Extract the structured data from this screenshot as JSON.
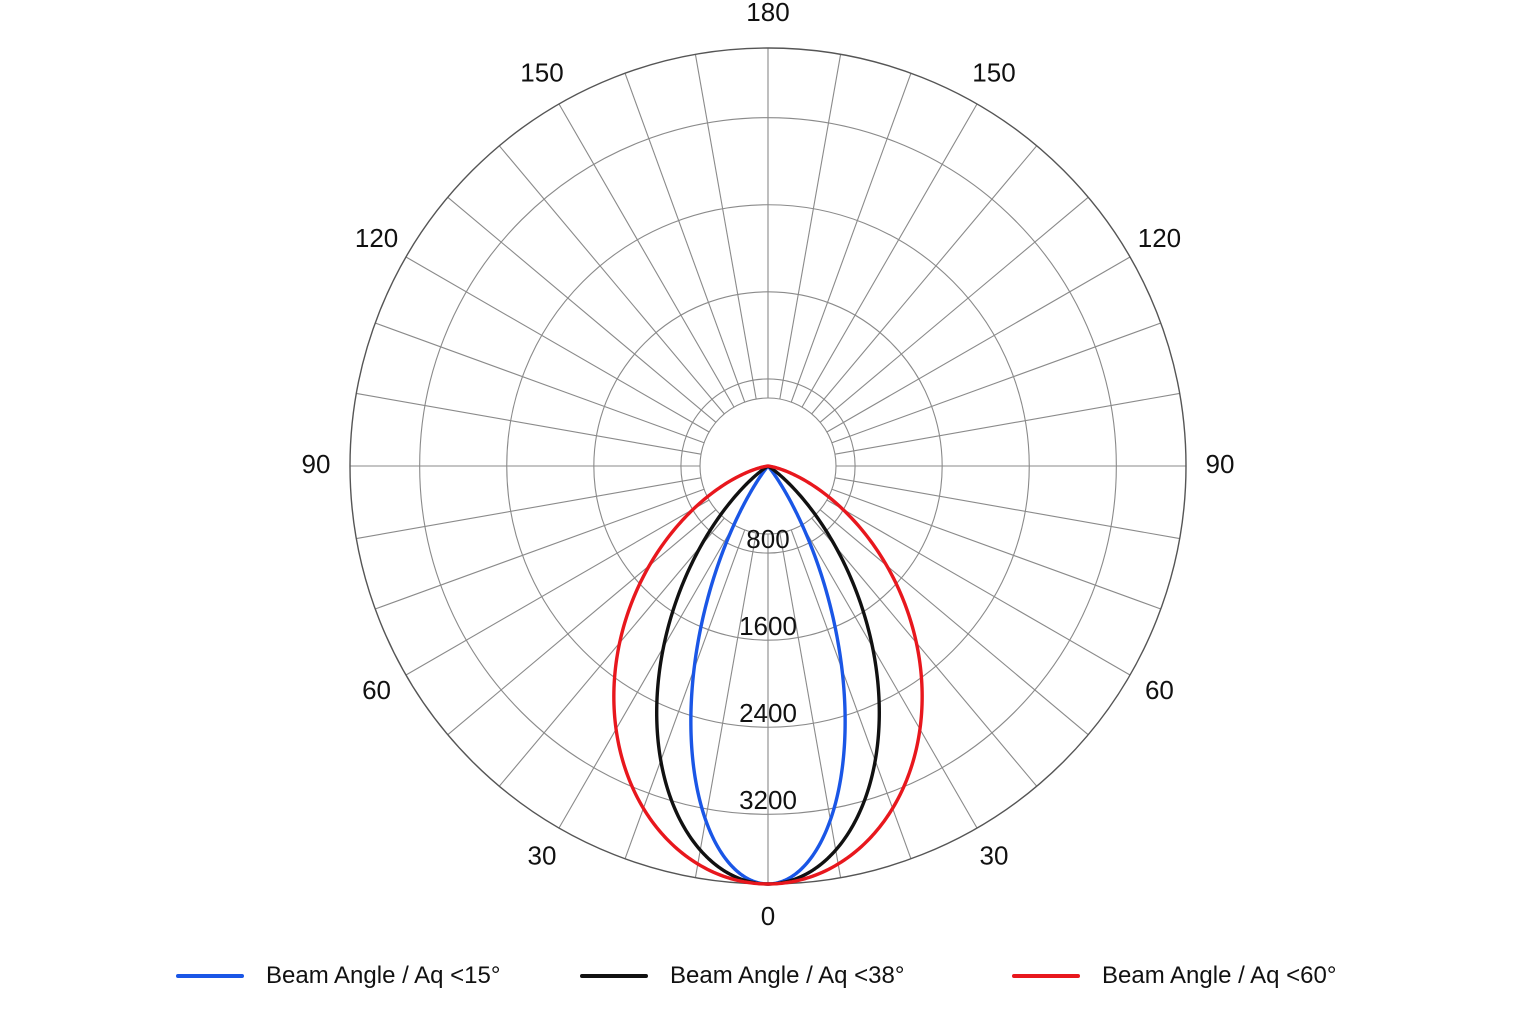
{
  "chart_data": {
    "type": "polar",
    "angle_labels": [
      {
        "angle": 0,
        "text": "0"
      },
      {
        "angle": 30,
        "text": "30"
      },
      {
        "angle": -30,
        "text": "30"
      },
      {
        "angle": 60,
        "text": "60"
      },
      {
        "angle": -60,
        "text": "60"
      },
      {
        "angle": 90,
        "text": "90"
      },
      {
        "angle": -90,
        "text": "90"
      },
      {
        "angle": 120,
        "text": "120"
      },
      {
        "angle": -120,
        "text": "120"
      },
      {
        "angle": 150,
        "text": "150"
      },
      {
        "angle": -150,
        "text": "150"
      },
      {
        "angle": 180,
        "text": "180"
      }
    ],
    "radial_ticks": [
      {
        "value": 800,
        "text": "800"
      },
      {
        "value": 1600,
        "text": "1600"
      },
      {
        "value": 2400,
        "text": "2400"
      },
      {
        "value": 3200,
        "text": "3200"
      }
    ],
    "radial_range": [
      0,
      3840
    ],
    "spoke_step_deg": 10,
    "series": [
      {
        "name": "Beam Angle / Aq <15°",
        "color": "#1a56e6",
        "angle_scale": 2.2
      },
      {
        "name": "Beam Angle / Aq <38°",
        "color": "#111111",
        "angle_scale": 1.5
      },
      {
        "name": "Beam Angle / Aq <60°",
        "color": "#e8171d",
        "angle_scale": 1.05
      }
    ],
    "peak_value": 3840,
    "legend_position": "bottom"
  }
}
